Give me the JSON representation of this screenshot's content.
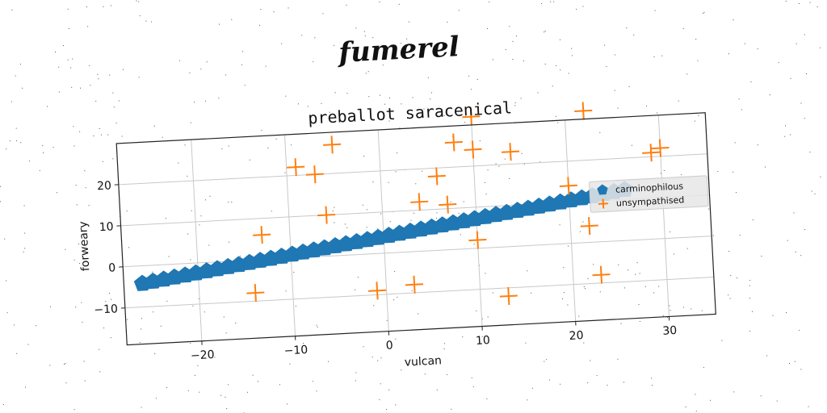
{
  "suptitle": "fumerel",
  "colors": {
    "series1": "#1f77b4",
    "series2": "#ff7f0e",
    "grid": "#c8c8c8",
    "axes": "#222222",
    "legend_bg": "#e6e6e6"
  },
  "chart_data": {
    "type": "scatter",
    "title": "preballot saracenical",
    "xlabel": "vulcan",
    "ylabel": "forweary",
    "xlim": [
      -28,
      35
    ],
    "ylim": [
      -19,
      30
    ],
    "xticks": [
      -20,
      -10,
      0,
      10,
      20,
      30
    ],
    "yticks": [
      -10,
      0,
      10,
      20
    ],
    "xtick_labels": [
      "−20",
      "−10",
      "0",
      "10",
      "20",
      "30"
    ],
    "ytick_labels": [
      "−10",
      "0",
      "10",
      "20"
    ],
    "grid": true,
    "legend": "right",
    "series": [
      {
        "name": "carminophilous",
        "marker": "pentagon",
        "line": {
          "x_start": -26,
          "x_end": 26,
          "slope": 0.32,
          "intercept": 4,
          "count": 46
        }
      },
      {
        "name": "unsympathised",
        "marker": "plus",
        "x": [
          -13,
          -5,
          -14,
          -9,
          -7,
          10,
          -6,
          -1,
          3,
          4,
          6,
          7,
          8,
          10,
          10,
          13,
          14,
          20,
          22,
          22,
          23,
          29,
          30
        ],
        "y": [
          6,
          27,
          -8,
          22,
          20,
          32,
          10,
          -9,
          -8,
          12,
          18,
          11,
          26,
          24,
          2,
          -12,
          23,
          14,
          32,
          4,
          -8,
          21,
          22
        ]
      }
    ]
  }
}
